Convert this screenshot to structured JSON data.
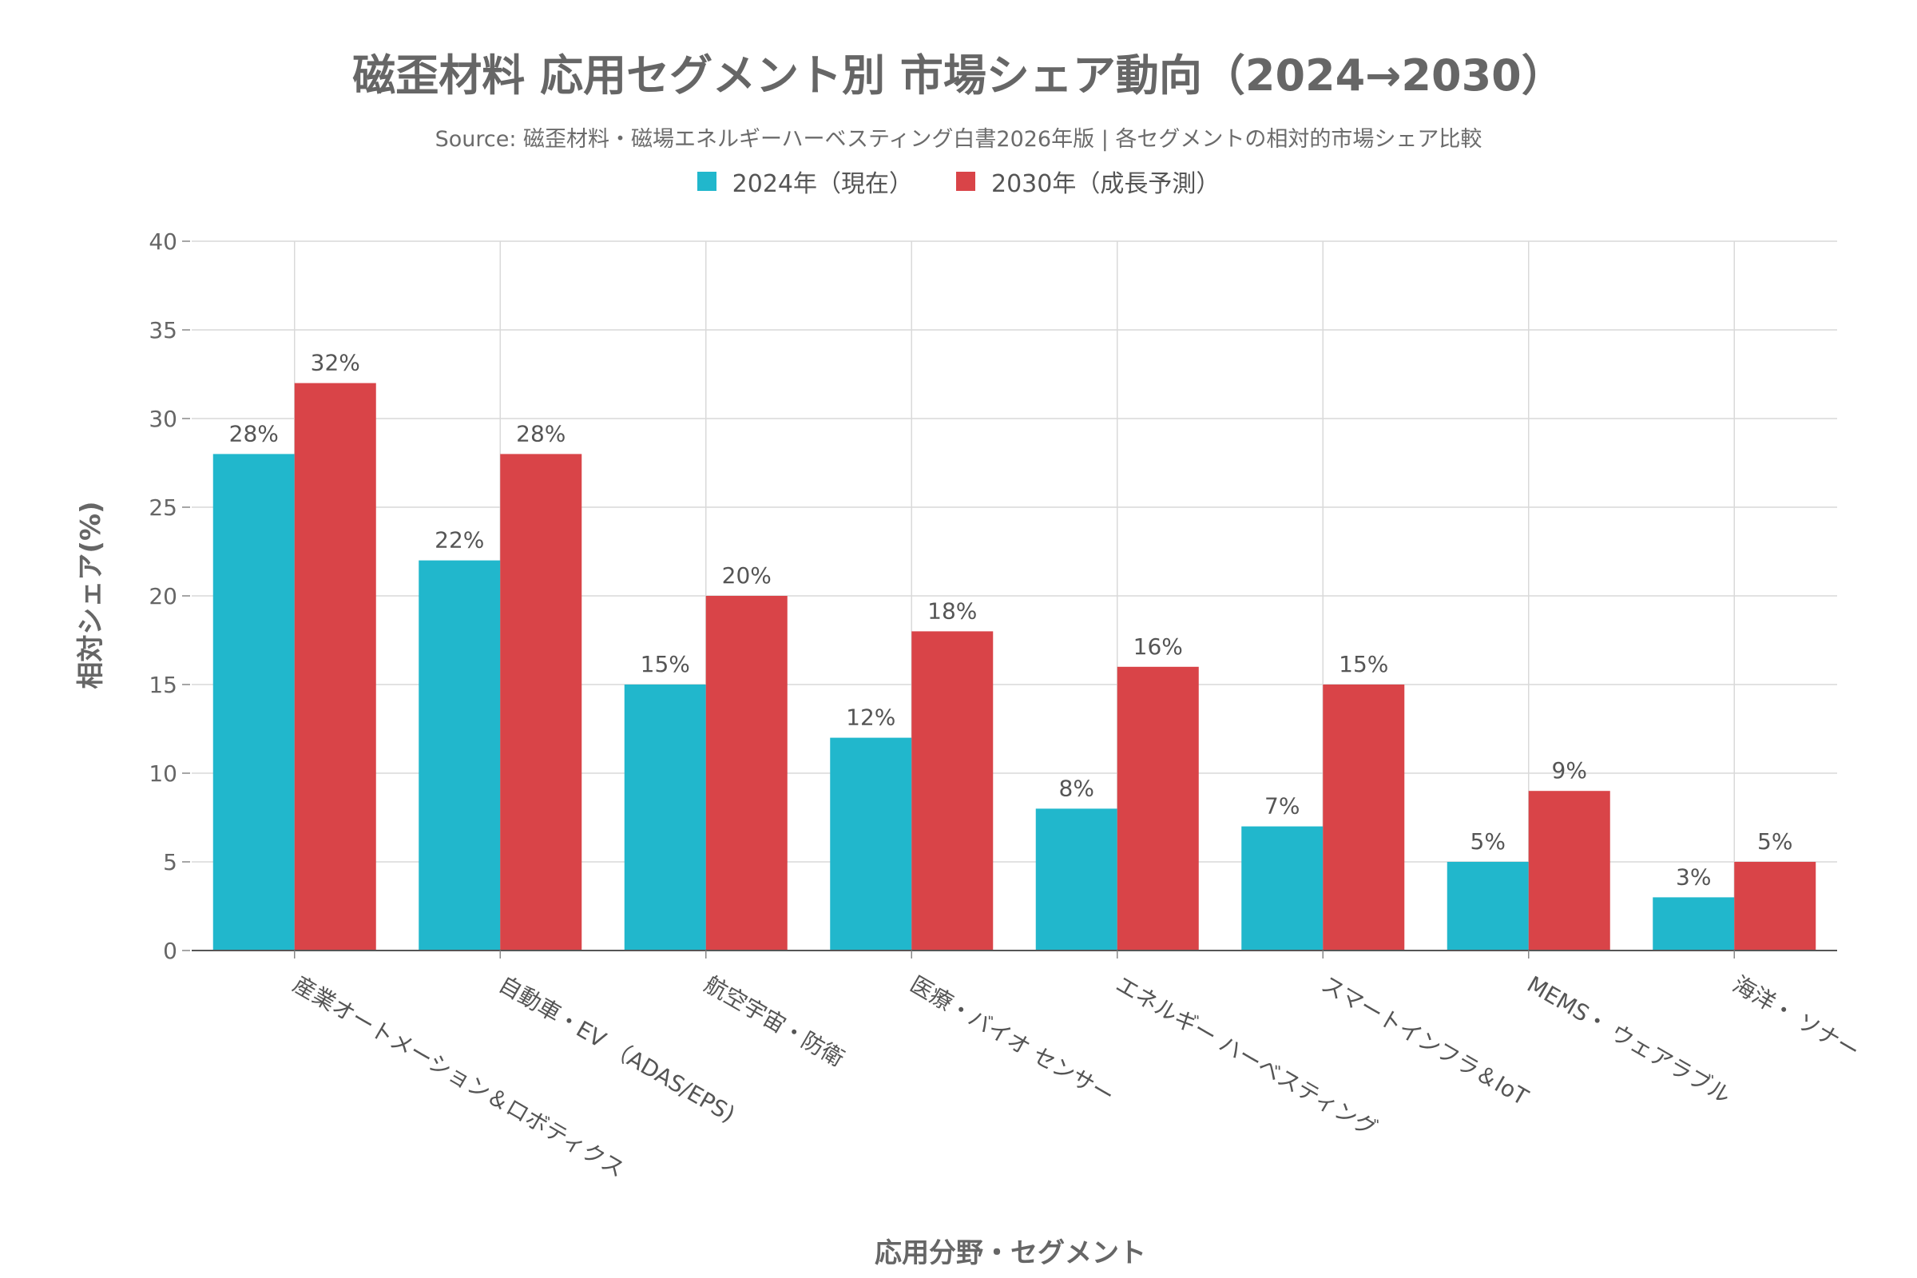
{
  "chart_data": {
    "type": "bar",
    "title": "磁歪材料 応用セグメント別 市場シェア動向（2024→2030）",
    "subtitle": "Source: 磁歪材料・磁場エネルギーハーベスティング白書2026年版 | 各セグメントの相対的市場シェア比較",
    "xlabel": "応用分野・セグメント",
    "ylabel": "相対シェア(%)",
    "ylim": [
      0,
      40
    ],
    "yticks": [
      0,
      5,
      10,
      15,
      20,
      25,
      30,
      35,
      40
    ],
    "grid": true,
    "legend_position": "top-center",
    "categories": [
      "産業オートメーション＆ロボティクス",
      "自動車・EV （ADAS/EPS)",
      "航空宇宙・防衛",
      "医療・バイオ センサー",
      "エネルギー ハーベスティング",
      "スマートインフラ＆IoT",
      "MEMS・ ウェアラブル",
      "海洋・ ソナー"
    ],
    "series": [
      {
        "name": "2024年（現在）",
        "color": "#21b7cc",
        "values": [
          28,
          22,
          15,
          12,
          8,
          7,
          5,
          3
        ]
      },
      {
        "name": "2030年（成長予測）",
        "color": "#d94448",
        "values": [
          32,
          28,
          20,
          18,
          16,
          15,
          9,
          5
        ]
      }
    ],
    "value_suffix": "%"
  }
}
